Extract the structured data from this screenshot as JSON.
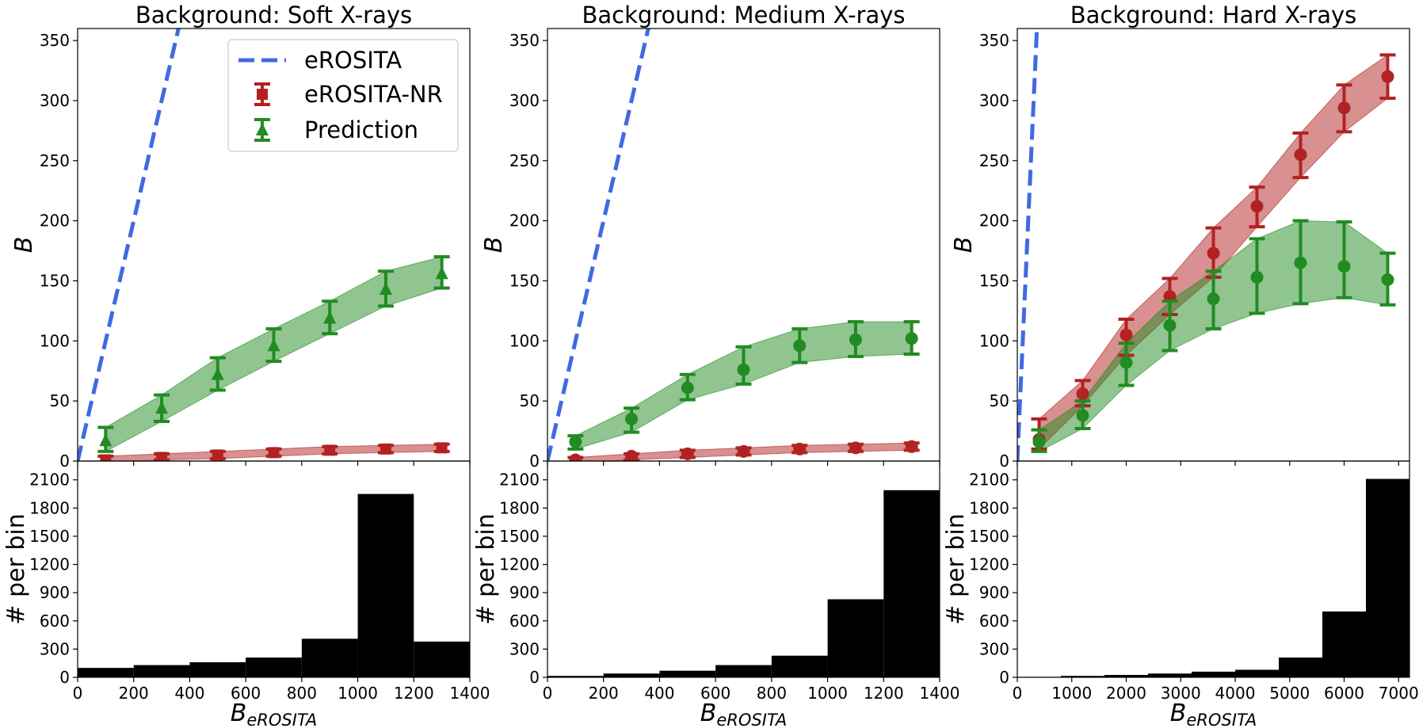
{
  "colors": {
    "erosita": "#4169e1",
    "nr": "#b22222",
    "pred": "#228b22",
    "hist": "#000000"
  },
  "legend": {
    "erosita": "eROSITA",
    "nr": "eROSITA-NR",
    "pred": "Prediction"
  },
  "labels": {
    "ylabel_top": "B",
    "ylabel_bottom": "# per bin",
    "xlabel_main": "B",
    "xlabel_sub": "eROSITA"
  },
  "chart_data": [
    {
      "type": "line",
      "title": "Background: Soft X-rays",
      "xlim": [
        0,
        1400
      ],
      "ylim": [
        0,
        360
      ],
      "xticks": [
        0,
        200,
        400,
        600,
        800,
        1000,
        1200,
        1400
      ],
      "yticks": [
        0,
        50,
        100,
        150,
        200,
        250,
        300,
        350
      ],
      "legend": "top-right",
      "marker_pred": "triangle",
      "marker_nr": "square",
      "erosita_line": {
        "x": [
          0,
          360
        ],
        "y": [
          0,
          360
        ]
      },
      "x": [
        100,
        300,
        500,
        700,
        900,
        1100,
        1300
      ],
      "series": [
        {
          "key": "pred",
          "values": [
            17,
            44,
            72,
            96,
            119,
            143,
            156
          ],
          "lo": [
            8,
            33,
            59,
            83,
            106,
            129,
            144
          ],
          "hi": [
            28,
            55,
            86,
            110,
            133,
            158,
            170
          ]
        },
        {
          "key": "nr",
          "values": [
            1,
            3,
            5,
            7,
            9,
            10,
            11
          ],
          "lo": [
            -1,
            1,
            2,
            4,
            6,
            7,
            8
          ],
          "hi": [
            4,
            6,
            8,
            10,
            12,
            13,
            14
          ]
        }
      ],
      "histogram": {
        "edges": [
          0,
          200,
          400,
          600,
          800,
          1000,
          1200,
          1400
        ],
        "counts": [
          100,
          130,
          160,
          210,
          410,
          1950,
          380
        ],
        "ylim": [
          0,
          2300
        ],
        "yticks": [
          0,
          300,
          600,
          900,
          1200,
          1500,
          1800,
          2100
        ]
      }
    },
    {
      "type": "line",
      "title": "Background: Medium X-rays",
      "xlim": [
        0,
        1400
      ],
      "ylim": [
        0,
        360
      ],
      "xticks": [
        0,
        200,
        400,
        600,
        800,
        1000,
        1200,
        1400
      ],
      "yticks": [
        0,
        50,
        100,
        150,
        200,
        250,
        300,
        350
      ],
      "marker_pred": "circle",
      "marker_nr": "circle",
      "erosita_line": {
        "x": [
          0,
          360
        ],
        "y": [
          0,
          360
        ]
      },
      "x": [
        100,
        300,
        500,
        700,
        900,
        1100,
        1300
      ],
      "series": [
        {
          "key": "pred",
          "values": [
            16,
            35,
            61,
            76,
            96,
            101,
            102
          ],
          "lo": [
            10,
            24,
            51,
            64,
            82,
            87,
            89
          ],
          "hi": [
            21,
            44,
            72,
            95,
            110,
            116,
            116
          ]
        },
        {
          "key": "nr",
          "values": [
            1,
            4,
            6,
            8,
            10,
            11,
            12
          ],
          "lo": [
            -1,
            1,
            3,
            5,
            7,
            8,
            9
          ],
          "hi": [
            3,
            6,
            9,
            11,
            13,
            14,
            15
          ]
        }
      ],
      "histogram": {
        "edges": [
          0,
          200,
          400,
          600,
          800,
          1000,
          1200,
          1400
        ],
        "counts": [
          15,
          40,
          70,
          130,
          230,
          830,
          1990
        ],
        "ylim": [
          0,
          2300
        ],
        "yticks": [
          0,
          300,
          600,
          900,
          1200,
          1500,
          1800,
          2100
        ]
      }
    },
    {
      "type": "line",
      "title": "Background: Hard X-rays",
      "xlim": [
        0,
        7200
      ],
      "ylim": [
        0,
        360
      ],
      "xticks": [
        0,
        1000,
        2000,
        3000,
        4000,
        5000,
        6000,
        7000
      ],
      "yticks": [
        0,
        50,
        100,
        150,
        200,
        250,
        300,
        350
      ],
      "marker_pred": "circle",
      "marker_nr": "circle",
      "erosita_line": {
        "x": [
          0,
          360
        ],
        "y": [
          0,
          360
        ]
      },
      "x": [
        400,
        1200,
        2000,
        2800,
        3600,
        4400,
        5200,
        6000,
        6800
      ],
      "series": [
        {
          "key": "nr",
          "values": [
            18,
            56,
            105,
            137,
            173,
            212,
            255,
            294,
            320
          ],
          "lo": [
            10,
            46,
            88,
            122,
            153,
            195,
            236,
            274,
            302
          ],
          "hi": [
            35,
            67,
            118,
            152,
            194,
            228,
            273,
            313,
            338
          ]
        },
        {
          "key": "pred",
          "values": [
            16,
            38,
            82,
            113,
            135,
            153,
            165,
            162,
            151
          ],
          "lo": [
            8,
            27,
            63,
            92,
            110,
            123,
            131,
            136,
            130
          ],
          "hi": [
            26,
            50,
            98,
            133,
            158,
            185,
            200,
            199,
            173
          ]
        }
      ],
      "histogram": {
        "edges": [
          0,
          800,
          1600,
          2400,
          3200,
          4000,
          4800,
          5600,
          6400,
          7200
        ],
        "counts": [
          5,
          15,
          25,
          40,
          60,
          80,
          210,
          700,
          2110
        ],
        "ylim": [
          0,
          2300
        ],
        "yticks": [
          0,
          300,
          600,
          900,
          1200,
          1500,
          1800,
          2100
        ]
      }
    }
  ]
}
